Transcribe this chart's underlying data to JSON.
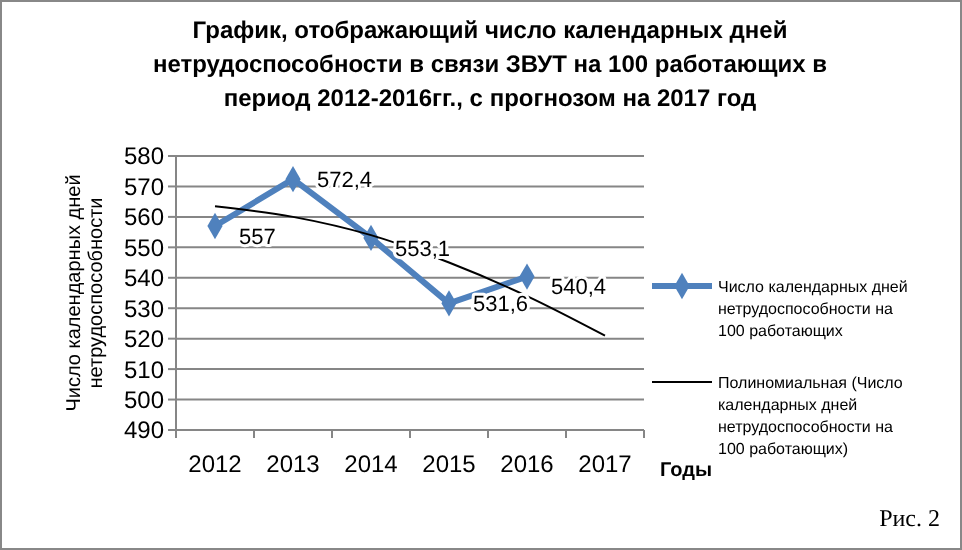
{
  "chart_data": {
    "type": "line",
    "title": "График, отображающий число календарных дней нетрудоспособности  в связи ЗВУТ на 100 работающих в период 2012-2016гг., с прогнозом на 2017 год",
    "xlabel": "Годы",
    "ylabel": "Число календарных дней нетрудоспособности",
    "categories": [
      "2012",
      "2013",
      "2014",
      "2015",
      "2016",
      "2017"
    ],
    "series": [
      {
        "name": "Число календарных дней нетрудоспособности на 100 работающих",
        "color": "#4f81bd",
        "values": [
          557,
          572.4,
          553.1,
          531.6,
          540.4,
          null
        ],
        "value_labels": [
          "557",
          "572,4",
          "553,1",
          "531,6",
          "540,4",
          null
        ],
        "marker": "diamond"
      },
      {
        "name": "Полиномиальная (Число календарных дней нетрудоспособности на 100 работающих)",
        "color": "#000000",
        "values": [
          563.5,
          560,
          554,
          545,
          534,
          521
        ],
        "marker": "none"
      }
    ],
    "ylim": [
      490,
      580
    ],
    "yticks": [
      490,
      500,
      510,
      520,
      530,
      540,
      550,
      560,
      570,
      580
    ],
    "grid": "y",
    "legend": "right",
    "annotations": [
      "Рис. 2"
    ]
  }
}
